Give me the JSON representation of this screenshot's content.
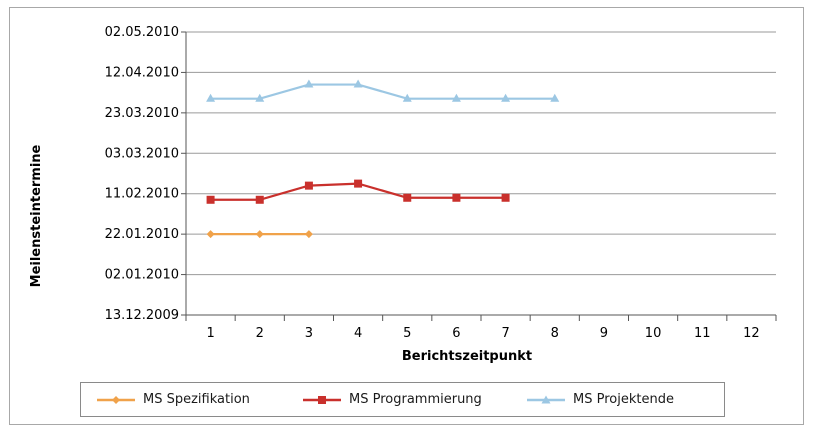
{
  "chart_data": {
    "type": "line",
    "title": "",
    "xlabel": "Berichtszeitpunkt",
    "ylabel": "Meilensteintermine",
    "x": [
      1,
      2,
      3,
      4,
      5,
      6,
      7,
      8,
      9,
      10,
      11,
      12
    ],
    "x_ticks": [
      "1",
      "2",
      "3",
      "4",
      "5",
      "6",
      "7",
      "8",
      "9",
      "10",
      "11",
      "12"
    ],
    "y_ticks": [
      "02.05.2010",
      "12.04.2010",
      "23.03.2010",
      "03.03.2010",
      "11.02.2010",
      "22.01.2010",
      "02.01.2010",
      "13.12.2009"
    ],
    "ylim": [
      "13.12.2009",
      "02.05.2010"
    ],
    "grid": true,
    "legend_position": "bottom",
    "series": [
      {
        "name": "MS Spezifikation",
        "color": "#f0a24a",
        "marker": "diamond",
        "x": [
          1,
          2,
          3
        ],
        "values": [
          "22.01.2010",
          "22.01.2010",
          "22.01.2010"
        ]
      },
      {
        "name": "MS Programmierung",
        "color": "#c9302c",
        "marker": "square",
        "x": [
          1,
          2,
          3,
          4,
          5,
          6,
          7
        ],
        "values": [
          "08.02.2010",
          "08.02.2010",
          "15.02.2010",
          "16.02.2010",
          "09.02.2010",
          "09.02.2010",
          "09.02.2010"
        ]
      },
      {
        "name": "MS Projektende",
        "color": "#9cc7e3",
        "marker": "triangle",
        "x": [
          1,
          2,
          3,
          4,
          5,
          6,
          7,
          8
        ],
        "values": [
          "30.03.2010",
          "30.03.2010",
          "06.04.2010",
          "06.04.2010",
          "30.03.2010",
          "30.03.2010",
          "30.03.2010",
          "30.03.2010"
        ]
      }
    ]
  }
}
